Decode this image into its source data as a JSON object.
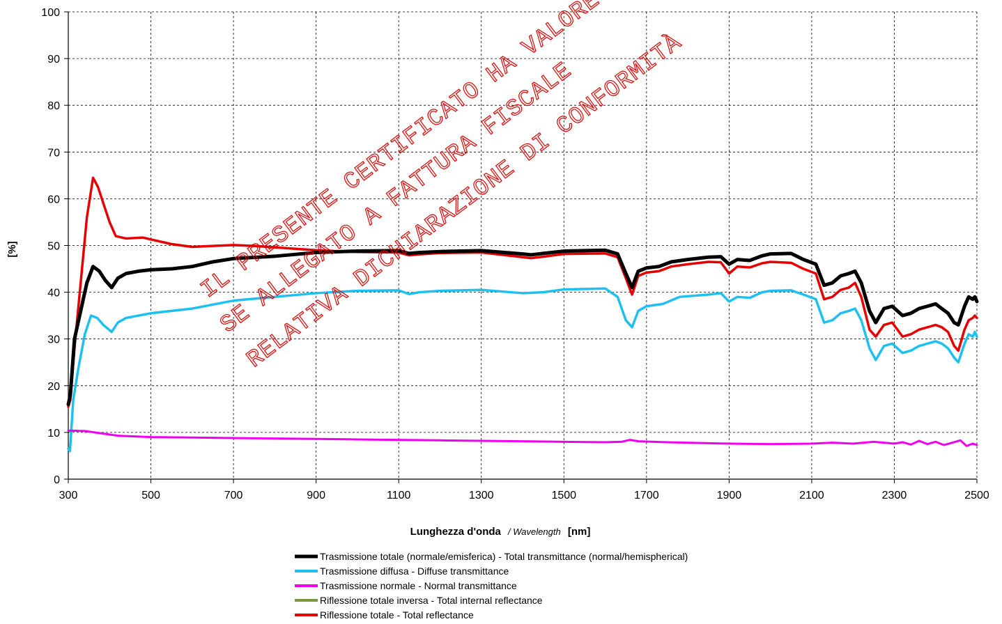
{
  "chart_data": {
    "type": "line",
    "ylabel": "[%]",
    "xlabel": {
      "main": "Lunghezza d'onda",
      "italic": "/ Wavelength",
      "unit": "[nm]"
    },
    "xlim": [
      300,
      2500
    ],
    "ylim": [
      0,
      100
    ],
    "xticks": [
      300,
      500,
      700,
      900,
      1100,
      1300,
      1500,
      1700,
      1900,
      2100,
      2300,
      2500
    ],
    "yticks": [
      0,
      10,
      20,
      30,
      40,
      50,
      60,
      70,
      80,
      90,
      100
    ],
    "grid": true,
    "legend_position": "bottom",
    "series": [
      {
        "name": "Trasmissione totale (normale/emisferica) - Total transmittance (normal/hemispherical)",
        "color": "#000000",
        "points": [
          [
            300,
            16
          ],
          [
            305,
            18
          ],
          [
            315,
            30
          ],
          [
            330,
            36
          ],
          [
            345,
            42
          ],
          [
            360,
            45.5
          ],
          [
            375,
            44.5
          ],
          [
            390,
            42.5
          ],
          [
            405,
            41
          ],
          [
            420,
            43
          ],
          [
            440,
            44
          ],
          [
            470,
            44.5
          ],
          [
            500,
            44.8
          ],
          [
            550,
            45
          ],
          [
            600,
            45.5
          ],
          [
            650,
            46.5
          ],
          [
            700,
            47.2
          ],
          [
            800,
            47.7
          ],
          [
            900,
            48.5
          ],
          [
            1000,
            48.8
          ],
          [
            1100,
            48.9
          ],
          [
            1125,
            48.3
          ],
          [
            1150,
            48.5
          ],
          [
            1200,
            48.7
          ],
          [
            1300,
            48.9
          ],
          [
            1400,
            48.2
          ],
          [
            1420,
            48
          ],
          [
            1450,
            48.3
          ],
          [
            1500,
            48.8
          ],
          [
            1600,
            49
          ],
          [
            1630,
            48.2
          ],
          [
            1650,
            44
          ],
          [
            1665,
            41
          ],
          [
            1680,
            44.5
          ],
          [
            1700,
            45.2
          ],
          [
            1730,
            45.5
          ],
          [
            1760,
            46.5
          ],
          [
            1800,
            47
          ],
          [
            1850,
            47.5
          ],
          [
            1880,
            47.6
          ],
          [
            1900,
            46
          ],
          [
            1920,
            47
          ],
          [
            1950,
            46.8
          ],
          [
            1980,
            47.8
          ],
          [
            2000,
            48.2
          ],
          [
            2050,
            48.3
          ],
          [
            2080,
            47
          ],
          [
            2110,
            46
          ],
          [
            2130,
            41.5
          ],
          [
            2150,
            42
          ],
          [
            2170,
            43.5
          ],
          [
            2190,
            44
          ],
          [
            2205,
            44.5
          ],
          [
            2220,
            42
          ],
          [
            2240,
            36
          ],
          [
            2255,
            33.5
          ],
          [
            2275,
            36.5
          ],
          [
            2295,
            37
          ],
          [
            2320,
            35
          ],
          [
            2340,
            35.5
          ],
          [
            2360,
            36.5
          ],
          [
            2380,
            37
          ],
          [
            2400,
            37.5
          ],
          [
            2415,
            36.5
          ],
          [
            2430,
            35.5
          ],
          [
            2445,
            33.5
          ],
          [
            2455,
            33
          ],
          [
            2470,
            37
          ],
          [
            2480,
            39
          ],
          [
            2490,
            38.5
          ],
          [
            2495,
            39
          ],
          [
            2500,
            38
          ]
        ]
      },
      {
        "name": "Trasmissione diffusa - Diffuse transmittance",
        "color": "#1ec0f0",
        "points": [
          [
            300,
            6.5
          ],
          [
            304,
            6
          ],
          [
            312,
            17
          ],
          [
            325,
            24
          ],
          [
            340,
            31
          ],
          [
            355,
            35
          ],
          [
            370,
            34.5
          ],
          [
            385,
            33
          ],
          [
            405,
            31.5
          ],
          [
            420,
            33.5
          ],
          [
            440,
            34.5
          ],
          [
            500,
            35.5
          ],
          [
            600,
            36.5
          ],
          [
            700,
            38.2
          ],
          [
            800,
            39
          ],
          [
            900,
            39.8
          ],
          [
            1000,
            40.3
          ],
          [
            1100,
            40.4
          ],
          [
            1125,
            39.6
          ],
          [
            1150,
            40
          ],
          [
            1200,
            40.3
          ],
          [
            1300,
            40.5
          ],
          [
            1400,
            39.8
          ],
          [
            1450,
            40
          ],
          [
            1500,
            40.6
          ],
          [
            1600,
            40.8
          ],
          [
            1630,
            39
          ],
          [
            1650,
            34
          ],
          [
            1665,
            32.5
          ],
          [
            1680,
            36
          ],
          [
            1700,
            37
          ],
          [
            1740,
            37.5
          ],
          [
            1780,
            39
          ],
          [
            1850,
            39.5
          ],
          [
            1880,
            39.8
          ],
          [
            1900,
            38
          ],
          [
            1920,
            39
          ],
          [
            1950,
            38.8
          ],
          [
            1980,
            40
          ],
          [
            2000,
            40.3
          ],
          [
            2050,
            40.4
          ],
          [
            2080,
            39.5
          ],
          [
            2110,
            38.5
          ],
          [
            2130,
            33.5
          ],
          [
            2150,
            34
          ],
          [
            2170,
            35.5
          ],
          [
            2190,
            36
          ],
          [
            2205,
            36.5
          ],
          [
            2220,
            34
          ],
          [
            2240,
            28
          ],
          [
            2255,
            25.5
          ],
          [
            2275,
            28.5
          ],
          [
            2295,
            29
          ],
          [
            2320,
            27
          ],
          [
            2340,
            27.5
          ],
          [
            2360,
            28.5
          ],
          [
            2380,
            29
          ],
          [
            2400,
            29.5
          ],
          [
            2415,
            29
          ],
          [
            2430,
            28
          ],
          [
            2445,
            26
          ],
          [
            2455,
            25
          ],
          [
            2470,
            29
          ],
          [
            2480,
            31
          ],
          [
            2490,
            30.5
          ],
          [
            2495,
            31.5
          ],
          [
            2500,
            30.5
          ]
        ]
      },
      {
        "name": "Trasmissione normale - Normal transmittance",
        "color": "#f000f0",
        "points": [
          [
            300,
            10.4
          ],
          [
            340,
            10.3
          ],
          [
            380,
            9.8
          ],
          [
            420,
            9.3
          ],
          [
            500,
            9
          ],
          [
            600,
            8.9
          ],
          [
            700,
            8.8
          ],
          [
            800,
            8.7
          ],
          [
            900,
            8.6
          ],
          [
            1000,
            8.5
          ],
          [
            1100,
            8.4
          ],
          [
            1200,
            8.3
          ],
          [
            1300,
            8.2
          ],
          [
            1400,
            8.1
          ],
          [
            1500,
            8
          ],
          [
            1600,
            7.9
          ],
          [
            1640,
            8
          ],
          [
            1660,
            8.4
          ],
          [
            1680,
            8.1
          ],
          [
            1750,
            7.9
          ],
          [
            1850,
            7.7
          ],
          [
            1900,
            7.6
          ],
          [
            2000,
            7.5
          ],
          [
            2100,
            7.6
          ],
          [
            2150,
            7.8
          ],
          [
            2200,
            7.6
          ],
          [
            2250,
            8
          ],
          [
            2300,
            7.6
          ],
          [
            2320,
            7.9
          ],
          [
            2340,
            7.4
          ],
          [
            2360,
            8.2
          ],
          [
            2380,
            7.5
          ],
          [
            2400,
            8
          ],
          [
            2420,
            7.3
          ],
          [
            2440,
            7.8
          ],
          [
            2460,
            8.3
          ],
          [
            2475,
            7.1
          ],
          [
            2490,
            7.6
          ],
          [
            2500,
            7.3
          ]
        ]
      },
      {
        "name": "Riflessione totale inversa - Total internal reflectance",
        "color": "#77993a",
        "points": []
      },
      {
        "name": "Riflessione totale - Total reflectance",
        "color": "#e60000",
        "points": [
          [
            300,
            15.5
          ],
          [
            305,
            17
          ],
          [
            315,
            28
          ],
          [
            330,
            42
          ],
          [
            345,
            56
          ],
          [
            360,
            64.5
          ],
          [
            372,
            62.5
          ],
          [
            385,
            59
          ],
          [
            400,
            55
          ],
          [
            415,
            52
          ],
          [
            440,
            51.5
          ],
          [
            480,
            51.7
          ],
          [
            500,
            51.3
          ],
          [
            550,
            50.3
          ],
          [
            600,
            49.7
          ],
          [
            650,
            49.9
          ],
          [
            700,
            50.1
          ],
          [
            750,
            49.9
          ],
          [
            800,
            49.6
          ],
          [
            850,
            49.3
          ],
          [
            900,
            49
          ],
          [
            1000,
            48.6
          ],
          [
            1100,
            48.5
          ],
          [
            1125,
            47.9
          ],
          [
            1150,
            48.1
          ],
          [
            1200,
            48.4
          ],
          [
            1300,
            48.5
          ],
          [
            1400,
            47.5
          ],
          [
            1420,
            47.3
          ],
          [
            1450,
            47.6
          ],
          [
            1500,
            48.2
          ],
          [
            1600,
            48.3
          ],
          [
            1630,
            47.5
          ],
          [
            1650,
            43
          ],
          [
            1665,
            39.5
          ],
          [
            1680,
            43.5
          ],
          [
            1700,
            44.2
          ],
          [
            1730,
            44.5
          ],
          [
            1760,
            45.5
          ],
          [
            1800,
            46
          ],
          [
            1850,
            46.5
          ],
          [
            1880,
            46.4
          ],
          [
            1900,
            44
          ],
          [
            1920,
            45.5
          ],
          [
            1950,
            45.3
          ],
          [
            1980,
            46.2
          ],
          [
            2000,
            46.5
          ],
          [
            2050,
            46.3
          ],
          [
            2080,
            45
          ],
          [
            2110,
            44
          ],
          [
            2130,
            38.5
          ],
          [
            2150,
            39
          ],
          [
            2170,
            40.5
          ],
          [
            2190,
            41
          ],
          [
            2205,
            42
          ],
          [
            2220,
            39
          ],
          [
            2240,
            32
          ],
          [
            2255,
            30.5
          ],
          [
            2275,
            33
          ],
          [
            2295,
            33.5
          ],
          [
            2320,
            30.5
          ],
          [
            2340,
            31
          ],
          [
            2360,
            32
          ],
          [
            2380,
            32.5
          ],
          [
            2400,
            33
          ],
          [
            2415,
            32.5
          ],
          [
            2430,
            31.5
          ],
          [
            2445,
            28.5
          ],
          [
            2455,
            27.5
          ],
          [
            2470,
            32
          ],
          [
            2480,
            34
          ],
          [
            2490,
            34.5
          ],
          [
            2495,
            35
          ],
          [
            2500,
            34.5
          ]
        ]
      }
    ]
  },
  "watermark": {
    "line1": "IL PRESENTE CERTIFICATO HA VALORE",
    "line2": "SE ALLEGATO A FATTURA FISCALE",
    "line3": "RELATIVA DICHIARAZIONE DI CONFORMITÀ"
  }
}
